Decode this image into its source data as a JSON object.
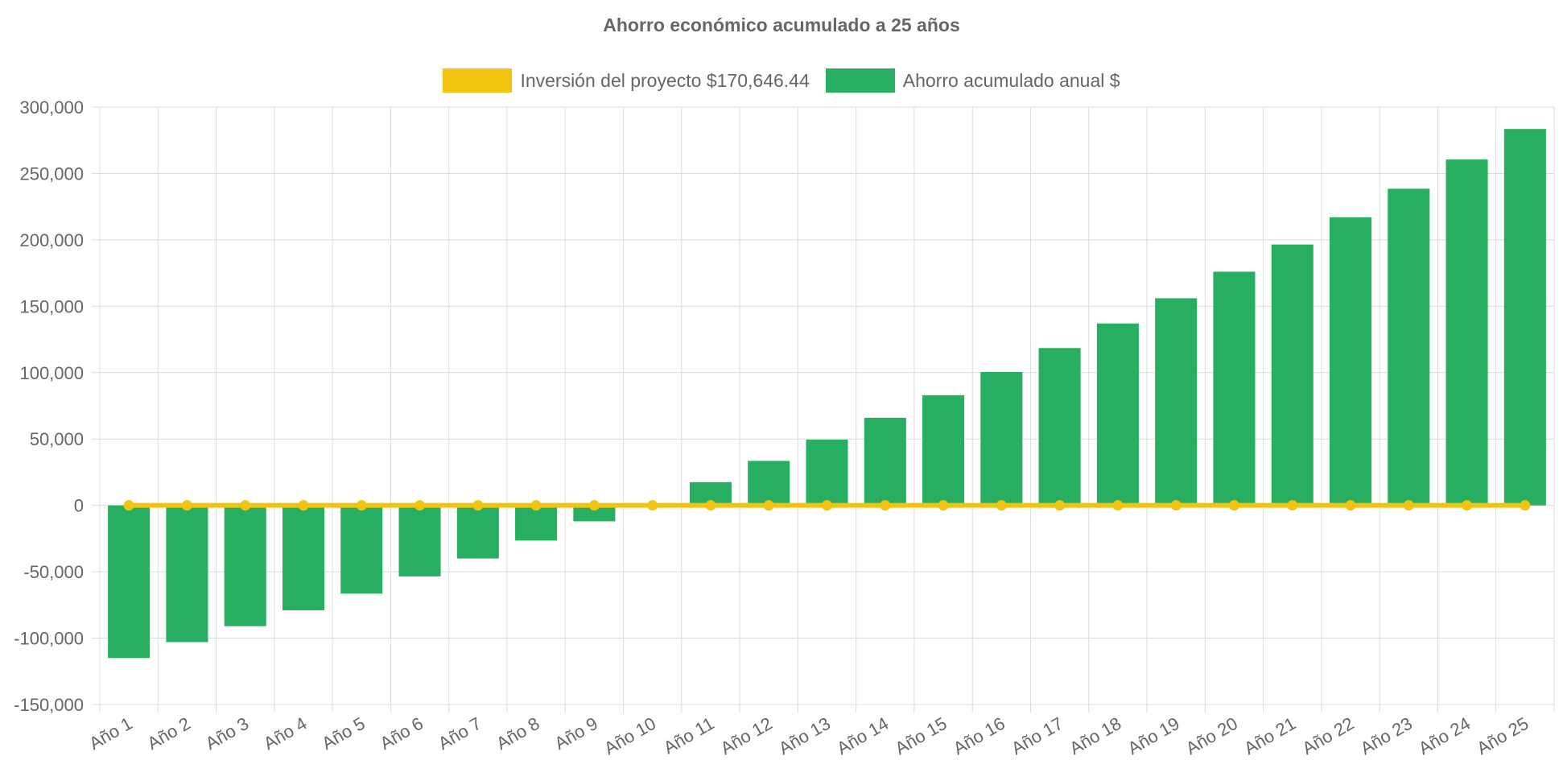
{
  "colors": {
    "investment": "#f2c40f",
    "savings": "#27ae60",
    "grid": "#dcdcdc",
    "text": "#666666"
  },
  "chart_data": {
    "type": "bar",
    "title": "Ahorro económico acumulado a 25 años",
    "xlabel": "",
    "ylabel": "",
    "ylim": [
      -150000,
      300000
    ],
    "yticks": [
      300000,
      250000,
      200000,
      150000,
      100000,
      50000,
      0,
      -50000,
      -100000,
      -150000
    ],
    "ytick_labels": [
      "300,000",
      "250,000",
      "200,000",
      "150,000",
      "100,000",
      "50,000",
      "0",
      "-50,000",
      "-100,000",
      "-150,000"
    ],
    "grid": true,
    "legend_position": "top",
    "categories": [
      "Año 1",
      "Año 2",
      "Año 3",
      "Año 4",
      "Año 5",
      "Año 6",
      "Año 7",
      "Año 8",
      "Año 9",
      "Año 10",
      "Año 11",
      "Año 12",
      "Año 13",
      "Año 14",
      "Año 15",
      "Año 16",
      "Año 17",
      "Año 18",
      "Año 19",
      "Año 20",
      "Año 21",
      "Año 22",
      "Año 23",
      "Año 24",
      "Año 25"
    ],
    "series": [
      {
        "name": "Inversión del proyecto $170,646.44",
        "type": "line",
        "values": [
          0,
          0,
          0,
          0,
          0,
          0,
          0,
          0,
          0,
          0,
          0,
          0,
          0,
          0,
          0,
          0,
          0,
          0,
          0,
          0,
          0,
          0,
          0,
          0,
          0
        ]
      },
      {
        "name": "Ahorro acumulado anual $",
        "type": "bar",
        "values": [
          -115000,
          -103000,
          -91000,
          -79000,
          -66500,
          -53500,
          -40000,
          -26500,
          -12000,
          1500,
          17500,
          33500,
          49500,
          66000,
          83000,
          100500,
          118500,
          137000,
          156000,
          176000,
          196500,
          217000,
          238500,
          260500,
          283500
        ]
      }
    ]
  }
}
